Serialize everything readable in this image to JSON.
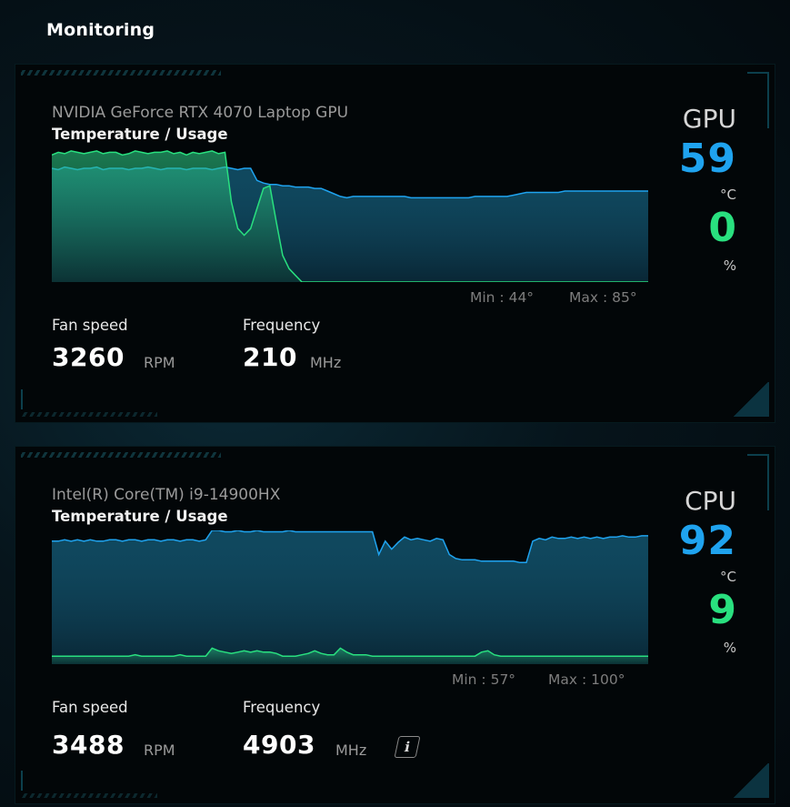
{
  "page": {
    "title": "Monitoring"
  },
  "colors": {
    "temp": "#1fa3ef",
    "usage": "#29e07f",
    "label": "#9a9a9a"
  },
  "gpu": {
    "device_name": "NVIDIA GeForce RTX 4070 Laptop GPU",
    "graph_title": "Temperature / Usage",
    "kind": "GPU",
    "temperature": "59",
    "temp_unit": "°C",
    "usage": "0",
    "usage_unit": "%",
    "min_label": "Min : 44°",
    "max_label": "Max : 85°",
    "fan_label": "Fan speed",
    "fan_value": "3260",
    "fan_unit": "RPM",
    "freq_label": "Frequency",
    "freq_value": "210",
    "freq_unit": "MHz"
  },
  "cpu": {
    "device_name": "Intel(R) Core(TM) i9-14900HX",
    "graph_title": "Temperature / Usage",
    "kind": "CPU",
    "temperature": "92",
    "temp_unit": "°C",
    "usage": "9",
    "usage_unit": "%",
    "min_label": "Min : 57°",
    "max_label": "Max : 100°",
    "fan_label": "Fan speed",
    "fan_value": "3488",
    "fan_unit": "RPM",
    "freq_label": "Frequency",
    "freq_value": "4903",
    "freq_unit": "MHz",
    "info_icon": "info-icon"
  },
  "chart_data": [
    {
      "type": "line",
      "series": [
        {
          "values": [
            85,
            84,
            86,
            85,
            84,
            85,
            85,
            86,
            84,
            85,
            85,
            85,
            84,
            85,
            85,
            86,
            85,
            84,
            85,
            85,
            85,
            84,
            85,
            85,
            85,
            84,
            85,
            86,
            85,
            84,
            85,
            85,
            76,
            74,
            73,
            73,
            72,
            72,
            71,
            71,
            71,
            70,
            70,
            68,
            66,
            64,
            63,
            64,
            64,
            64,
            64,
            64,
            64,
            64,
            64,
            64,
            63,
            63,
            63,
            63,
            63,
            63,
            63,
            63,
            63,
            63,
            64,
            64,
            64,
            64,
            64,
            64,
            65,
            66,
            67,
            67,
            67,
            67,
            67,
            67,
            68,
            68,
            68,
            68,
            68,
            68,
            68,
            68,
            68,
            68,
            68,
            68,
            68,
            68
          ]
        },
        {
          "values": [
            95,
            97,
            96,
            98,
            97,
            96,
            97,
            98,
            96,
            97,
            97,
            95,
            96,
            98,
            97,
            96,
            97,
            97,
            98,
            96,
            97,
            95,
            97,
            96,
            97,
            98,
            96,
            97,
            60,
            40,
            35,
            40,
            55,
            70,
            72,
            45,
            20,
            10,
            5,
            0,
            0,
            0,
            0,
            0,
            0,
            0,
            0,
            0,
            0,
            0,
            0,
            0,
            0,
            0,
            0,
            0,
            0,
            0,
            0,
            0,
            0,
            0,
            0,
            0,
            0,
            0,
            0,
            0,
            0,
            0,
            0,
            0,
            0,
            0,
            0,
            0,
            0,
            0,
            0,
            0,
            0,
            0,
            0,
            0,
            0,
            0,
            0,
            0,
            0,
            0,
            0,
            0,
            0,
            0
          ]
        }
      ]
    },
    {
      "type": "line",
      "series": [
        {
          "values": [
            92,
            92,
            93,
            92,
            93,
            92,
            93,
            92,
            92,
            93,
            93,
            92,
            93,
            93,
            92,
            93,
            93,
            92,
            93,
            93,
            92,
            93,
            93,
            92,
            93,
            100,
            100,
            99,
            99,
            100,
            99,
            99,
            100,
            99,
            99,
            99,
            99,
            100,
            99,
            99,
            99,
            99,
            99,
            99,
            99,
            99,
            99,
            99,
            99,
            99,
            99,
            82,
            92,
            86,
            91,
            95,
            93,
            94,
            93,
            92,
            94,
            93,
            82,
            79,
            78,
            78,
            78,
            77,
            77,
            77,
            77,
            77,
            77,
            76,
            76,
            92,
            94,
            93,
            95,
            94,
            94,
            95,
            94,
            95,
            94,
            95,
            94,
            95,
            95,
            96,
            95,
            95,
            96,
            96
          ]
        },
        {
          "values": [
            6,
            6,
            6,
            6,
            6,
            6,
            6,
            6,
            6,
            6,
            6,
            6,
            6,
            7,
            6,
            6,
            6,
            6,
            6,
            6,
            7,
            6,
            6,
            6,
            6,
            12,
            10,
            9,
            8,
            9,
            10,
            9,
            10,
            9,
            9,
            8,
            6,
            6,
            6,
            7,
            8,
            10,
            8,
            7,
            7,
            12,
            9,
            7,
            7,
            7,
            6,
            6,
            6,
            6,
            6,
            6,
            6,
            6,
            6,
            6,
            6,
            6,
            6,
            6,
            6,
            6,
            6,
            9,
            10,
            7,
            6,
            6,
            6,
            6,
            6,
            6,
            6,
            6,
            6,
            6,
            6,
            6,
            6,
            6,
            6,
            6,
            6,
            6,
            6,
            6,
            6,
            6,
            6,
            6
          ]
        }
      ]
    }
  ]
}
